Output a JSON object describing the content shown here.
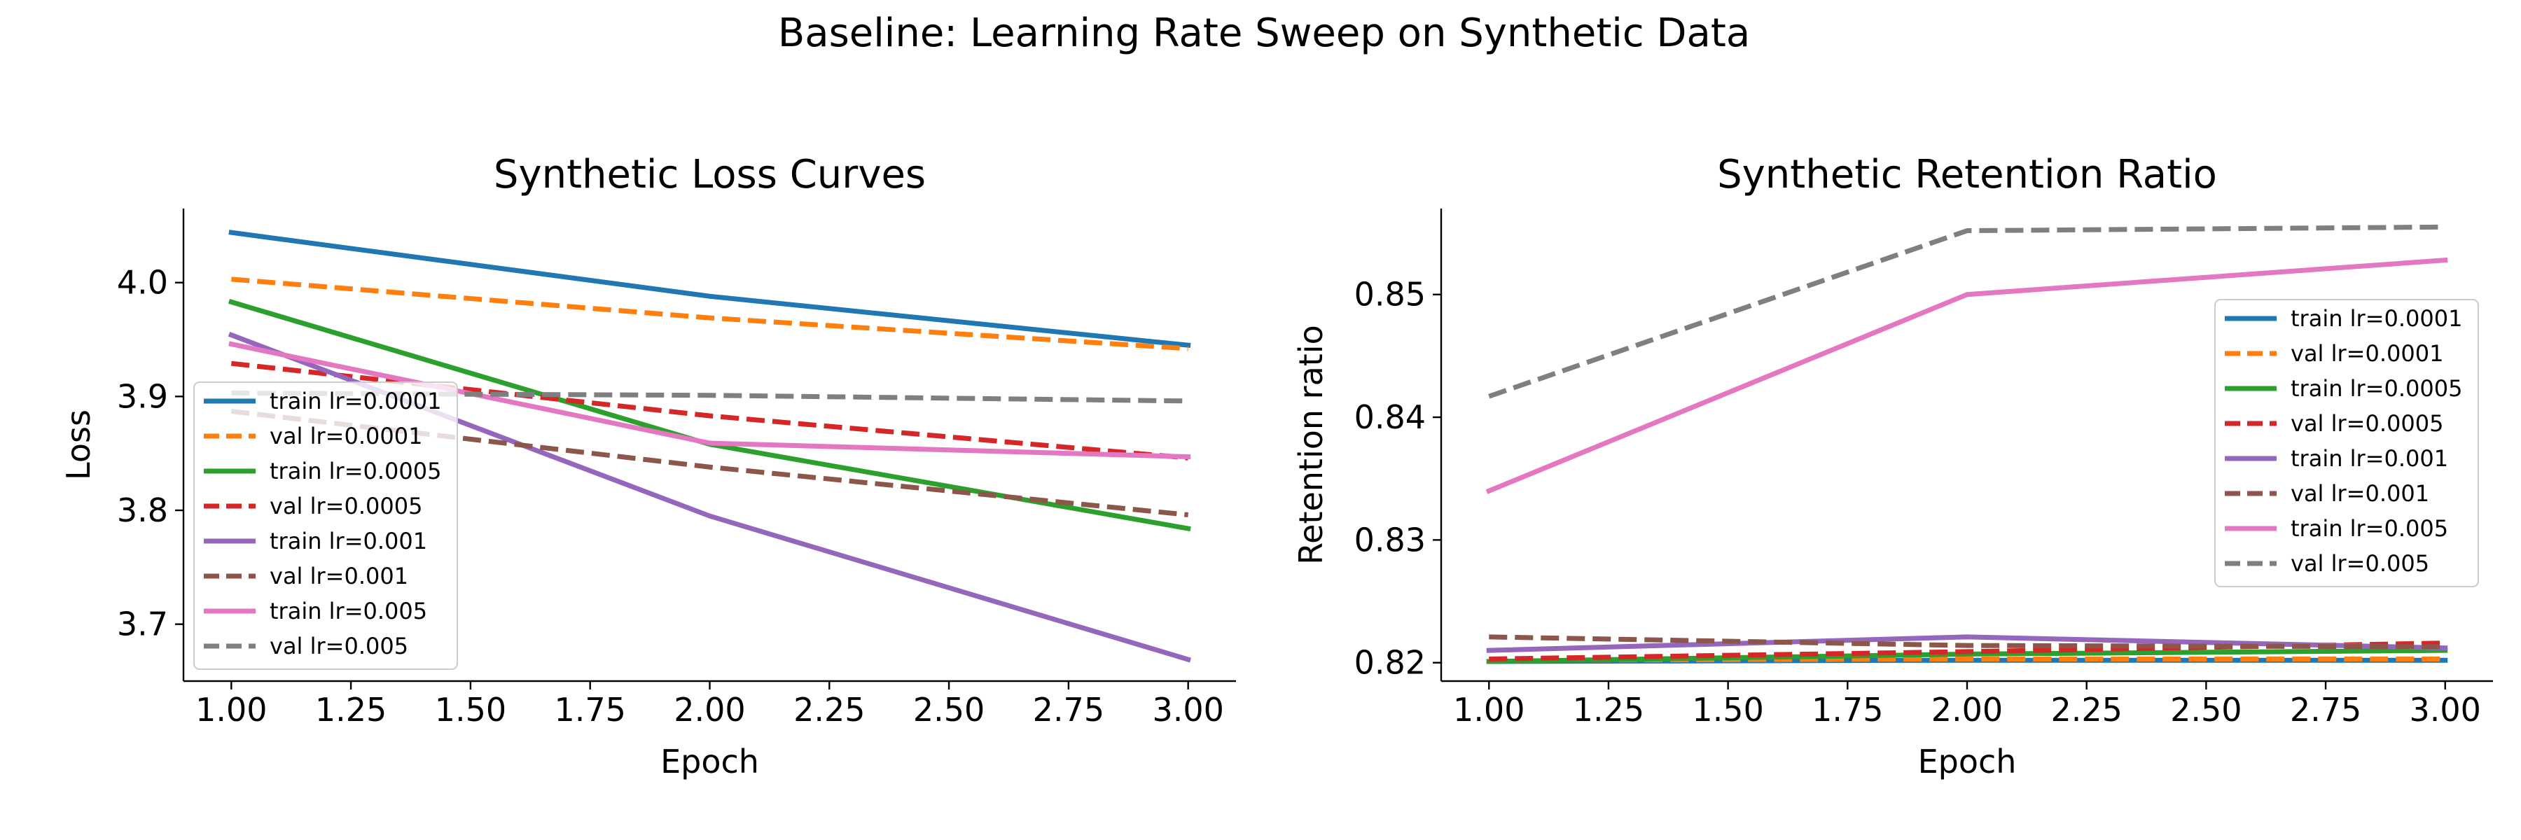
{
  "figure": {
    "suptitle": "Baseline: Learning Rate Sweep on Synthetic Data"
  },
  "chart_data": [
    {
      "type": "line",
      "title": "Synthetic Loss Curves",
      "xlabel": "Epoch",
      "ylabel": "Loss",
      "xlim": [
        0.9,
        3.1
      ],
      "ylim": [
        3.65,
        4.065
      ],
      "xticks": [
        "1.00",
        "1.25",
        "1.50",
        "1.75",
        "2.00",
        "2.25",
        "2.50",
        "2.75",
        "3.00"
      ],
      "yticks": [
        "3.7",
        "3.8",
        "3.9",
        "4.0"
      ],
      "grid": false,
      "legend_position": "lower-left",
      "x": [
        1,
        2,
        3
      ],
      "series": [
        {
          "name": "train lr=0.0001",
          "values": [
            4.044,
            3.988,
            3.945
          ],
          "color": "#1f77b4",
          "style": "solid"
        },
        {
          "name": "val lr=0.0001",
          "values": [
            4.003,
            3.969,
            3.942
          ],
          "color": "#ff7f0e",
          "style": "dashed"
        },
        {
          "name": "train lr=0.0005",
          "values": [
            3.983,
            3.858,
            3.784
          ],
          "color": "#2ca02c",
          "style": "solid"
        },
        {
          "name": "val lr=0.0005",
          "values": [
            3.929,
            3.883,
            3.846
          ],
          "color": "#d62728",
          "style": "dashed"
        },
        {
          "name": "train lr=0.001",
          "values": [
            3.954,
            3.795,
            3.669
          ],
          "color": "#9467bd",
          "style": "solid"
        },
        {
          "name": "val lr=0.001",
          "values": [
            3.887,
            3.838,
            3.796
          ],
          "color": "#8c564b",
          "style": "dashed"
        },
        {
          "name": "train lr=0.005",
          "values": [
            3.946,
            3.859,
            3.847
          ],
          "color": "#e377c2",
          "style": "solid"
        },
        {
          "name": "val lr=0.005",
          "values": [
            3.903,
            3.901,
            3.896
          ],
          "color": "#7f7f7f",
          "style": "dashed"
        }
      ]
    },
    {
      "type": "line",
      "title": "Synthetic Retention Ratio",
      "xlabel": "Epoch",
      "ylabel": "Retention ratio",
      "xlim": [
        0.9,
        3.1
      ],
      "ylim": [
        0.8185,
        0.857
      ],
      "xticks": [
        "1.00",
        "1.25",
        "1.50",
        "1.75",
        "2.00",
        "2.25",
        "2.50",
        "2.75",
        "3.00"
      ],
      "yticks": [
        "0.82",
        "0.83",
        "0.84",
        "0.85"
      ],
      "grid": false,
      "legend_position": "center-right",
      "x": [
        1,
        2,
        3
      ],
      "series": [
        {
          "name": "train lr=0.0001",
          "values": [
            0.8201,
            0.8202,
            0.8202
          ],
          "color": "#1f77b4",
          "style": "solid"
        },
        {
          "name": "val lr=0.0001",
          "values": [
            0.8202,
            0.8203,
            0.8203
          ],
          "color": "#ff7f0e",
          "style": "dashed"
        },
        {
          "name": "train lr=0.0005",
          "values": [
            0.8201,
            0.8207,
            0.821
          ],
          "color": "#2ca02c",
          "style": "solid"
        },
        {
          "name": "val lr=0.0005",
          "values": [
            0.8203,
            0.8209,
            0.8216
          ],
          "color": "#d62728",
          "style": "dashed"
        },
        {
          "name": "train lr=0.001",
          "values": [
            0.821,
            0.8221,
            0.8212
          ],
          "color": "#9467bd",
          "style": "solid"
        },
        {
          "name": "val lr=0.001",
          "values": [
            0.8221,
            0.8214,
            0.8213
          ],
          "color": "#8c564b",
          "style": "dashed"
        },
        {
          "name": "train lr=0.005",
          "values": [
            0.834,
            0.85,
            0.8528
          ],
          "color": "#e377c2",
          "style": "solid"
        },
        {
          "name": "val lr=0.005",
          "values": [
            0.8417,
            0.8552,
            0.8555
          ],
          "color": "#7f7f7f",
          "style": "dashed"
        }
      ]
    }
  ]
}
